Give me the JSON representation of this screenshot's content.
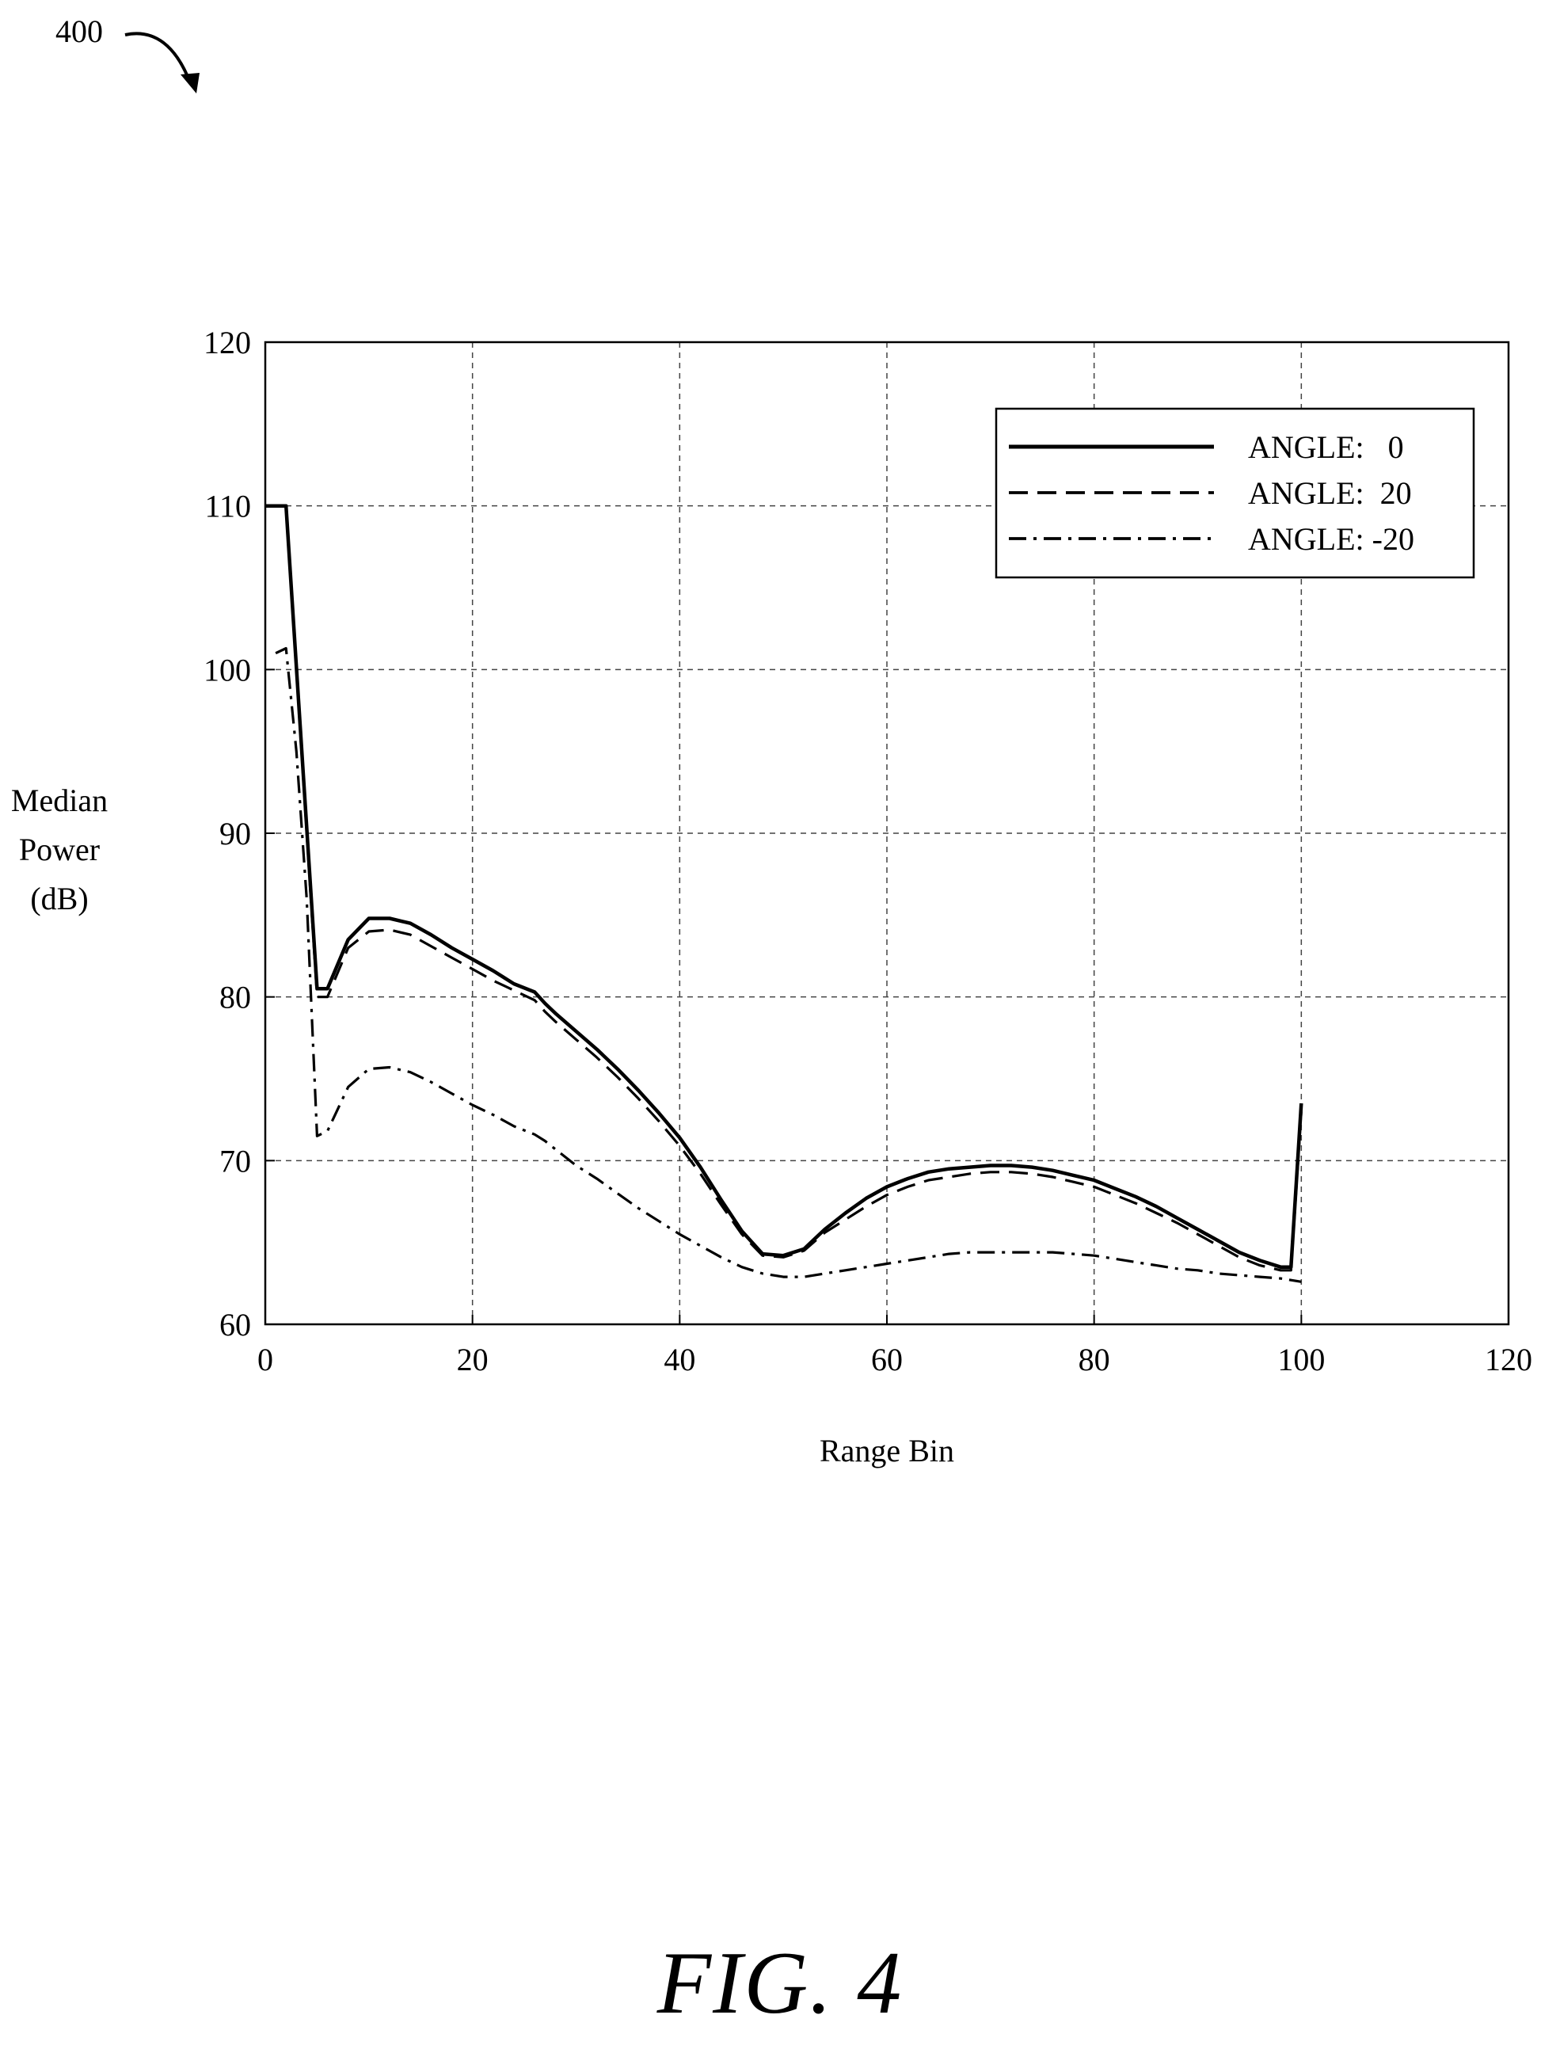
{
  "figure": {
    "reference_number": "400",
    "caption": "FIG. 4"
  },
  "chart_data": {
    "type": "line",
    "xlabel": "Range Bin",
    "ylabel_lines": [
      "Median",
      "Power",
      "(dB)"
    ],
    "xlim": [
      0,
      120
    ],
    "ylim": [
      60,
      120
    ],
    "xticks": [
      0,
      20,
      40,
      60,
      80,
      100,
      120
    ],
    "yticks": [
      60,
      70,
      80,
      90,
      100,
      110,
      120
    ],
    "grid": true,
    "legend_position": "top-right",
    "series": [
      {
        "name": "ANGLE:   0",
        "line_style": "solid",
        "x": [
          0,
          2,
          5,
          6,
          8,
          10,
          12,
          14,
          16,
          18,
          20,
          22,
          24,
          26,
          27,
          28,
          30,
          32,
          34,
          36,
          38,
          40,
          42,
          44,
          46,
          48,
          50,
          52,
          54,
          56,
          58,
          60,
          62,
          64,
          66,
          68,
          70,
          72,
          74,
          76,
          78,
          80,
          82,
          84,
          86,
          88,
          90,
          92,
          94,
          96,
          98,
          99,
          100
        ],
        "y": [
          110,
          110,
          80.5,
          80.5,
          83.5,
          84.8,
          84.8,
          84.5,
          83.8,
          83.0,
          82.3,
          81.6,
          80.8,
          80.3,
          79.6,
          79.0,
          77.9,
          76.8,
          75.6,
          74.3,
          72.9,
          71.4,
          69.6,
          67.6,
          65.7,
          64.3,
          64.2,
          64.6,
          65.8,
          66.8,
          67.7,
          68.4,
          68.9,
          69.3,
          69.5,
          69.6,
          69.7,
          69.7,
          69.6,
          69.4,
          69.1,
          68.8,
          68.3,
          67.8,
          67.2,
          66.5,
          65.8,
          65.1,
          64.4,
          63.9,
          63.5,
          63.5,
          73.5
        ]
      },
      {
        "name": "ANGLE:  20",
        "line_style": "dashed",
        "x": [
          0,
          2,
          5,
          6,
          8,
          10,
          12,
          14,
          16,
          18,
          20,
          22,
          24,
          26,
          27,
          28,
          30,
          32,
          34,
          36,
          38,
          40,
          42,
          44,
          46,
          48,
          50,
          52,
          54,
          56,
          58,
          60,
          62,
          64,
          66,
          68,
          70,
          72,
          74,
          76,
          78,
          80,
          82,
          84,
          86,
          88,
          90,
          92,
          94,
          96,
          98,
          99,
          100
        ],
        "y": [
          110,
          110,
          80.0,
          80.0,
          83.0,
          84.0,
          84.1,
          83.8,
          83.1,
          82.4,
          81.7,
          81.0,
          80.4,
          79.8,
          79.1,
          78.5,
          77.4,
          76.3,
          75.1,
          73.8,
          72.4,
          70.9,
          69.2,
          67.3,
          65.5,
          64.2,
          64.1,
          64.5,
          65.6,
          66.4,
          67.2,
          67.9,
          68.4,
          68.8,
          69.0,
          69.2,
          69.3,
          69.3,
          69.2,
          69.0,
          68.7,
          68.4,
          67.9,
          67.4,
          66.8,
          66.2,
          65.5,
          64.8,
          64.1,
          63.6,
          63.3,
          63.3,
          73.0
        ]
      },
      {
        "name": "ANGLE: -20",
        "line_style": "dashdot",
        "x": [
          1,
          2,
          3,
          4,
          5,
          6,
          8,
          10,
          12,
          14,
          16,
          18,
          20,
          22,
          24,
          26,
          27,
          28,
          30,
          32,
          34,
          36,
          38,
          40,
          42,
          44,
          46,
          48,
          50,
          52,
          54,
          56,
          58,
          60,
          62,
          64,
          66,
          68,
          70,
          72,
          74,
          76,
          78,
          80,
          82,
          84,
          86,
          88,
          90,
          92,
          94,
          96,
          98,
          100
        ],
        "y": [
          101,
          101.3,
          95,
          86,
          71.5,
          71.8,
          74.5,
          75.6,
          75.7,
          75.4,
          74.8,
          74.1,
          73.4,
          72.8,
          72.1,
          71.6,
          71.2,
          70.7,
          69.7,
          68.9,
          68.0,
          67.1,
          66.3,
          65.5,
          64.8,
          64.1,
          63.5,
          63.1,
          62.9,
          62.9,
          63.1,
          63.3,
          63.5,
          63.7,
          63.9,
          64.1,
          64.3,
          64.4,
          64.4,
          64.4,
          64.4,
          64.4,
          64.3,
          64.2,
          64.0,
          63.8,
          63.6,
          63.4,
          63.3,
          63.1,
          63.0,
          62.9,
          62.8,
          62.6
        ]
      }
    ]
  }
}
